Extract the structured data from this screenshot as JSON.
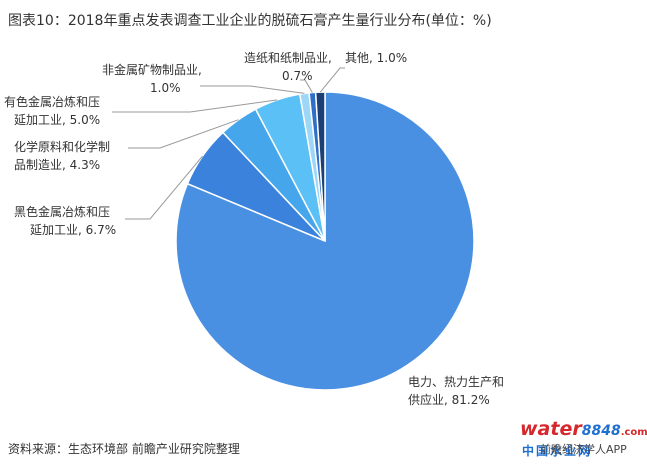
{
  "header": {
    "title": "图表10：2018年重点发表调查工业企业的脱硫石膏产生量行业分布(单位：%)"
  },
  "footer": {
    "source": "资料来源：生态环境部 前瞻产业研究院整理"
  },
  "watermark": {
    "logo_part1": "water",
    "logo_part2": "8848",
    "logo_part3": ".com",
    "logo_sub": "中国水业网",
    "app_text": "前瞻经济学人APP"
  },
  "chart_data": {
    "type": "pie",
    "title": "图表10：2018年重点发表调查工业企业的脱硫石膏产生量行业分布(单位：%)",
    "start": "12 o'clock",
    "direction": "clockwise",
    "slices": [
      {
        "label": "电力、热力生产和供应业",
        "value": 81.2,
        "value_label": "81.2%",
        "color": "#4a90e2"
      },
      {
        "label": "黑色金属冶炼和压延加工业",
        "value": 6.7,
        "value_label": "6.7%",
        "color": "#3a82db"
      },
      {
        "label": "化学原料和化学制品制造业",
        "value": 4.3,
        "value_label": "4.3%",
        "color": "#45a6ec"
      },
      {
        "label": "有色金属冶炼和压延加工业",
        "value": 5.0,
        "value_label": "5.0%",
        "color": "#5bc0f5"
      },
      {
        "label": "非金属矿物制品业",
        "value": 1.0,
        "value_label": "1.0%",
        "color": "#9ed6f7"
      },
      {
        "label": "造纸和纸制品业",
        "value": 0.7,
        "value_label": "0.7%",
        "color": "#2f6fc8"
      },
      {
        "label": "其他",
        "value": 1.0,
        "value_label": "1.0%",
        "color": "#1c3f75"
      }
    ]
  }
}
